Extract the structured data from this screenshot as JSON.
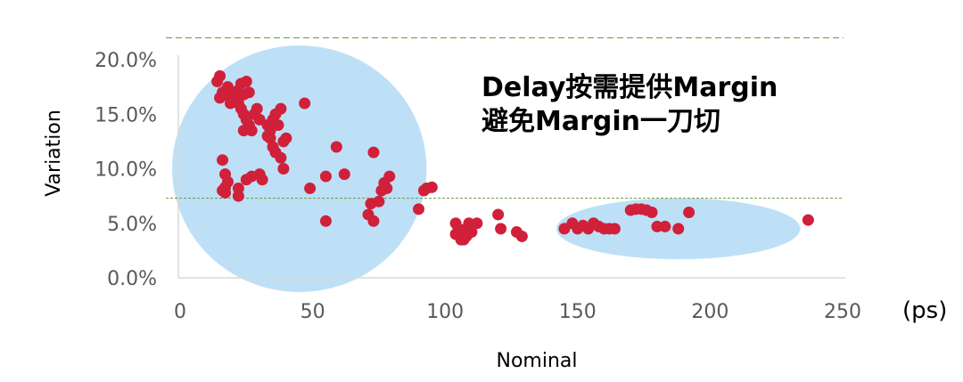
{
  "chart_data": {
    "type": "scatter",
    "title": "",
    "xlabel": "Nominal",
    "ylabel": "Variation",
    "x_unit": "(ps)",
    "xlim": [
      0,
      250
    ],
    "ylim": [
      0,
      0.2
    ],
    "x_ticks": [
      "0",
      "50",
      "100",
      "150",
      "200",
      "250"
    ],
    "y_ticks": [
      "0.0%",
      "5.0%",
      "10.0%",
      "15.0%",
      "20.0%"
    ],
    "grid": false,
    "legend": "none",
    "annotation_lines": [
      "Delay按需提供Margin",
      "避免Margin一刀切"
    ],
    "reference_lines": [
      0.22,
      0.073
    ],
    "highlight_regions": [
      {
        "cx": 45,
        "cy": 0.1,
        "rx": 48,
        "ry": 0.113
      },
      {
        "cx": 188,
        "cy": 0.045,
        "rx": 46,
        "ry": 0.028
      }
    ],
    "colors": {
      "points": "#d0203a",
      "regions": "#bde0f7",
      "reference": "#6a9a3a",
      "axis": "#d9d9d9"
    },
    "points": [
      [
        14,
        0.18
      ],
      [
        15,
        0.185
      ],
      [
        16,
        0.17
      ],
      [
        15,
        0.165
      ],
      [
        17,
        0.168
      ],
      [
        18,
        0.175
      ],
      [
        19,
        0.16
      ],
      [
        20,
        0.17
      ],
      [
        21,
        0.165
      ],
      [
        22,
        0.172
      ],
      [
        23,
        0.178
      ],
      [
        24,
        0.168
      ],
      [
        25,
        0.18
      ],
      [
        26,
        0.17
      ],
      [
        22,
        0.16
      ],
      [
        23,
        0.155
      ],
      [
        24,
        0.15
      ],
      [
        25,
        0.145
      ],
      [
        26,
        0.14
      ],
      [
        27,
        0.135
      ],
      [
        28,
        0.15
      ],
      [
        29,
        0.155
      ],
      [
        30,
        0.145
      ],
      [
        24,
        0.135
      ],
      [
        26,
        0.14
      ],
      [
        33,
        0.14
      ],
      [
        34,
        0.135
      ],
      [
        35,
        0.145
      ],
      [
        36,
        0.15
      ],
      [
        37,
        0.14
      ],
      [
        38,
        0.155
      ],
      [
        34,
        0.128
      ],
      [
        33,
        0.13
      ],
      [
        35,
        0.12
      ],
      [
        36,
        0.115
      ],
      [
        38,
        0.11
      ],
      [
        39,
        0.125
      ],
      [
        40,
        0.128
      ],
      [
        47,
        0.16
      ],
      [
        39,
        0.1
      ],
      [
        16,
        0.108
      ],
      [
        17,
        0.095
      ],
      [
        18,
        0.088
      ],
      [
        17,
        0.083
      ],
      [
        16,
        0.08
      ],
      [
        17,
        0.078
      ],
      [
        22,
        0.082
      ],
      [
        22,
        0.075
      ],
      [
        25,
        0.09
      ],
      [
        27,
        0.093
      ],
      [
        30,
        0.095
      ],
      [
        31,
        0.09
      ],
      [
        49,
        0.082
      ],
      [
        55,
        0.093
      ],
      [
        59,
        0.12
      ],
      [
        62,
        0.095
      ],
      [
        55,
        0.052
      ],
      [
        73,
        0.115
      ],
      [
        72,
        0.068
      ],
      [
        71,
        0.058
      ],
      [
        73,
        0.052
      ],
      [
        75,
        0.07
      ],
      [
        76,
        0.08
      ],
      [
        77,
        0.087
      ],
      [
        78,
        0.082
      ],
      [
        79,
        0.093
      ],
      [
        90,
        0.063
      ],
      [
        92,
        0.08
      ],
      [
        93,
        0.082
      ],
      [
        95,
        0.083
      ],
      [
        104,
        0.05
      ],
      [
        105,
        0.045
      ],
      [
        106,
        0.04
      ],
      [
        107,
        0.035
      ],
      [
        108,
        0.045
      ],
      [
        109,
        0.05
      ],
      [
        104,
        0.04
      ],
      [
        106,
        0.035
      ],
      [
        110,
        0.042
      ],
      [
        112,
        0.05
      ],
      [
        108,
        0.038
      ],
      [
        120,
        0.058
      ],
      [
        121,
        0.045
      ],
      [
        127,
        0.042
      ],
      [
        129,
        0.038
      ],
      [
        145,
        0.045
      ],
      [
        148,
        0.05
      ],
      [
        150,
        0.045
      ],
      [
        152,
        0.048
      ],
      [
        154,
        0.045
      ],
      [
        156,
        0.05
      ],
      [
        158,
        0.047
      ],
      [
        160,
        0.045
      ],
      [
        162,
        0.045
      ],
      [
        164,
        0.045
      ],
      [
        170,
        0.062
      ],
      [
        172,
        0.063
      ],
      [
        174,
        0.063
      ],
      [
        176,
        0.062
      ],
      [
        178,
        0.06
      ],
      [
        180,
        0.047
      ],
      [
        183,
        0.047
      ],
      [
        188,
        0.045
      ],
      [
        192,
        0.06
      ],
      [
        237,
        0.053
      ]
    ]
  }
}
